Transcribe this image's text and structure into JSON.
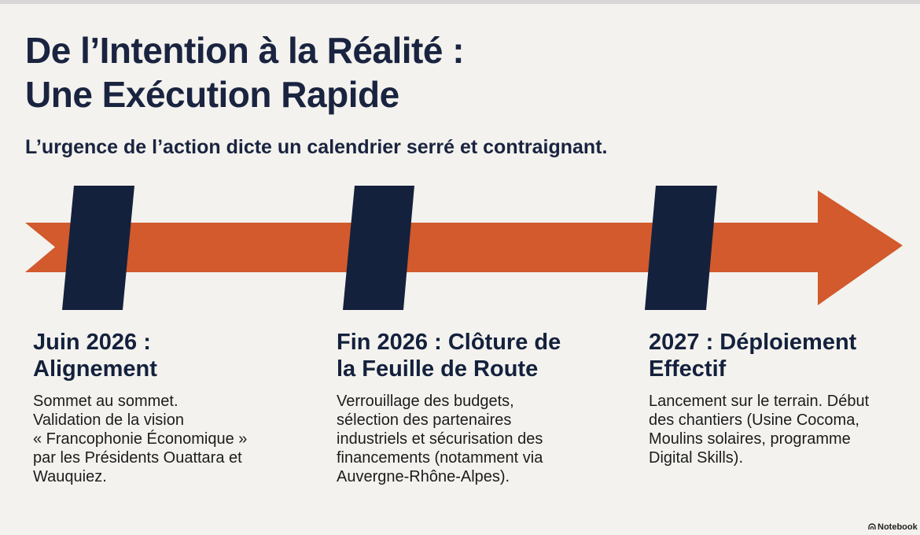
{
  "header": {
    "title_line1": "De l’Intention à la Réalité :",
    "title_line2": "Une Exécution Rapide",
    "subtitle": "L’urgence de l’action dicte un calendrier serré et contraignant."
  },
  "colors": {
    "arrow": "#d25a2c",
    "markers": "#14213d",
    "background": "#f3f2ee"
  },
  "milestones": [
    {
      "title_lines": [
        "Juin 2026 :",
        "Alignement"
      ],
      "description_lines": [
        "Sommet au sommet.",
        "Validation de la vision",
        "« Francophonie Économique »",
        "par les Présidents Ouattara et",
        "Wauquiez."
      ]
    },
    {
      "title_lines": [
        "Fin 2026 : Clôture de",
        "la Feuille de Route"
      ],
      "description_lines": [
        "Verrouillage des budgets,",
        "sélection des partenaires",
        "industriels et sécurisation des",
        "financements (notamment via",
        "Auvergne-Rhône-Alpes)."
      ]
    },
    {
      "title_lines": [
        "2027 : Déploiement",
        "Effectif"
      ],
      "description_lines": [
        "Lancement sur le terrain. Début",
        "des chantiers (Usine Cocoma,",
        "Moulins solaires, programme",
        "Digital Skills)."
      ]
    }
  ],
  "footer": {
    "brand": "Notebook",
    "brand_icon": "notebooklm-logo-icon"
  }
}
